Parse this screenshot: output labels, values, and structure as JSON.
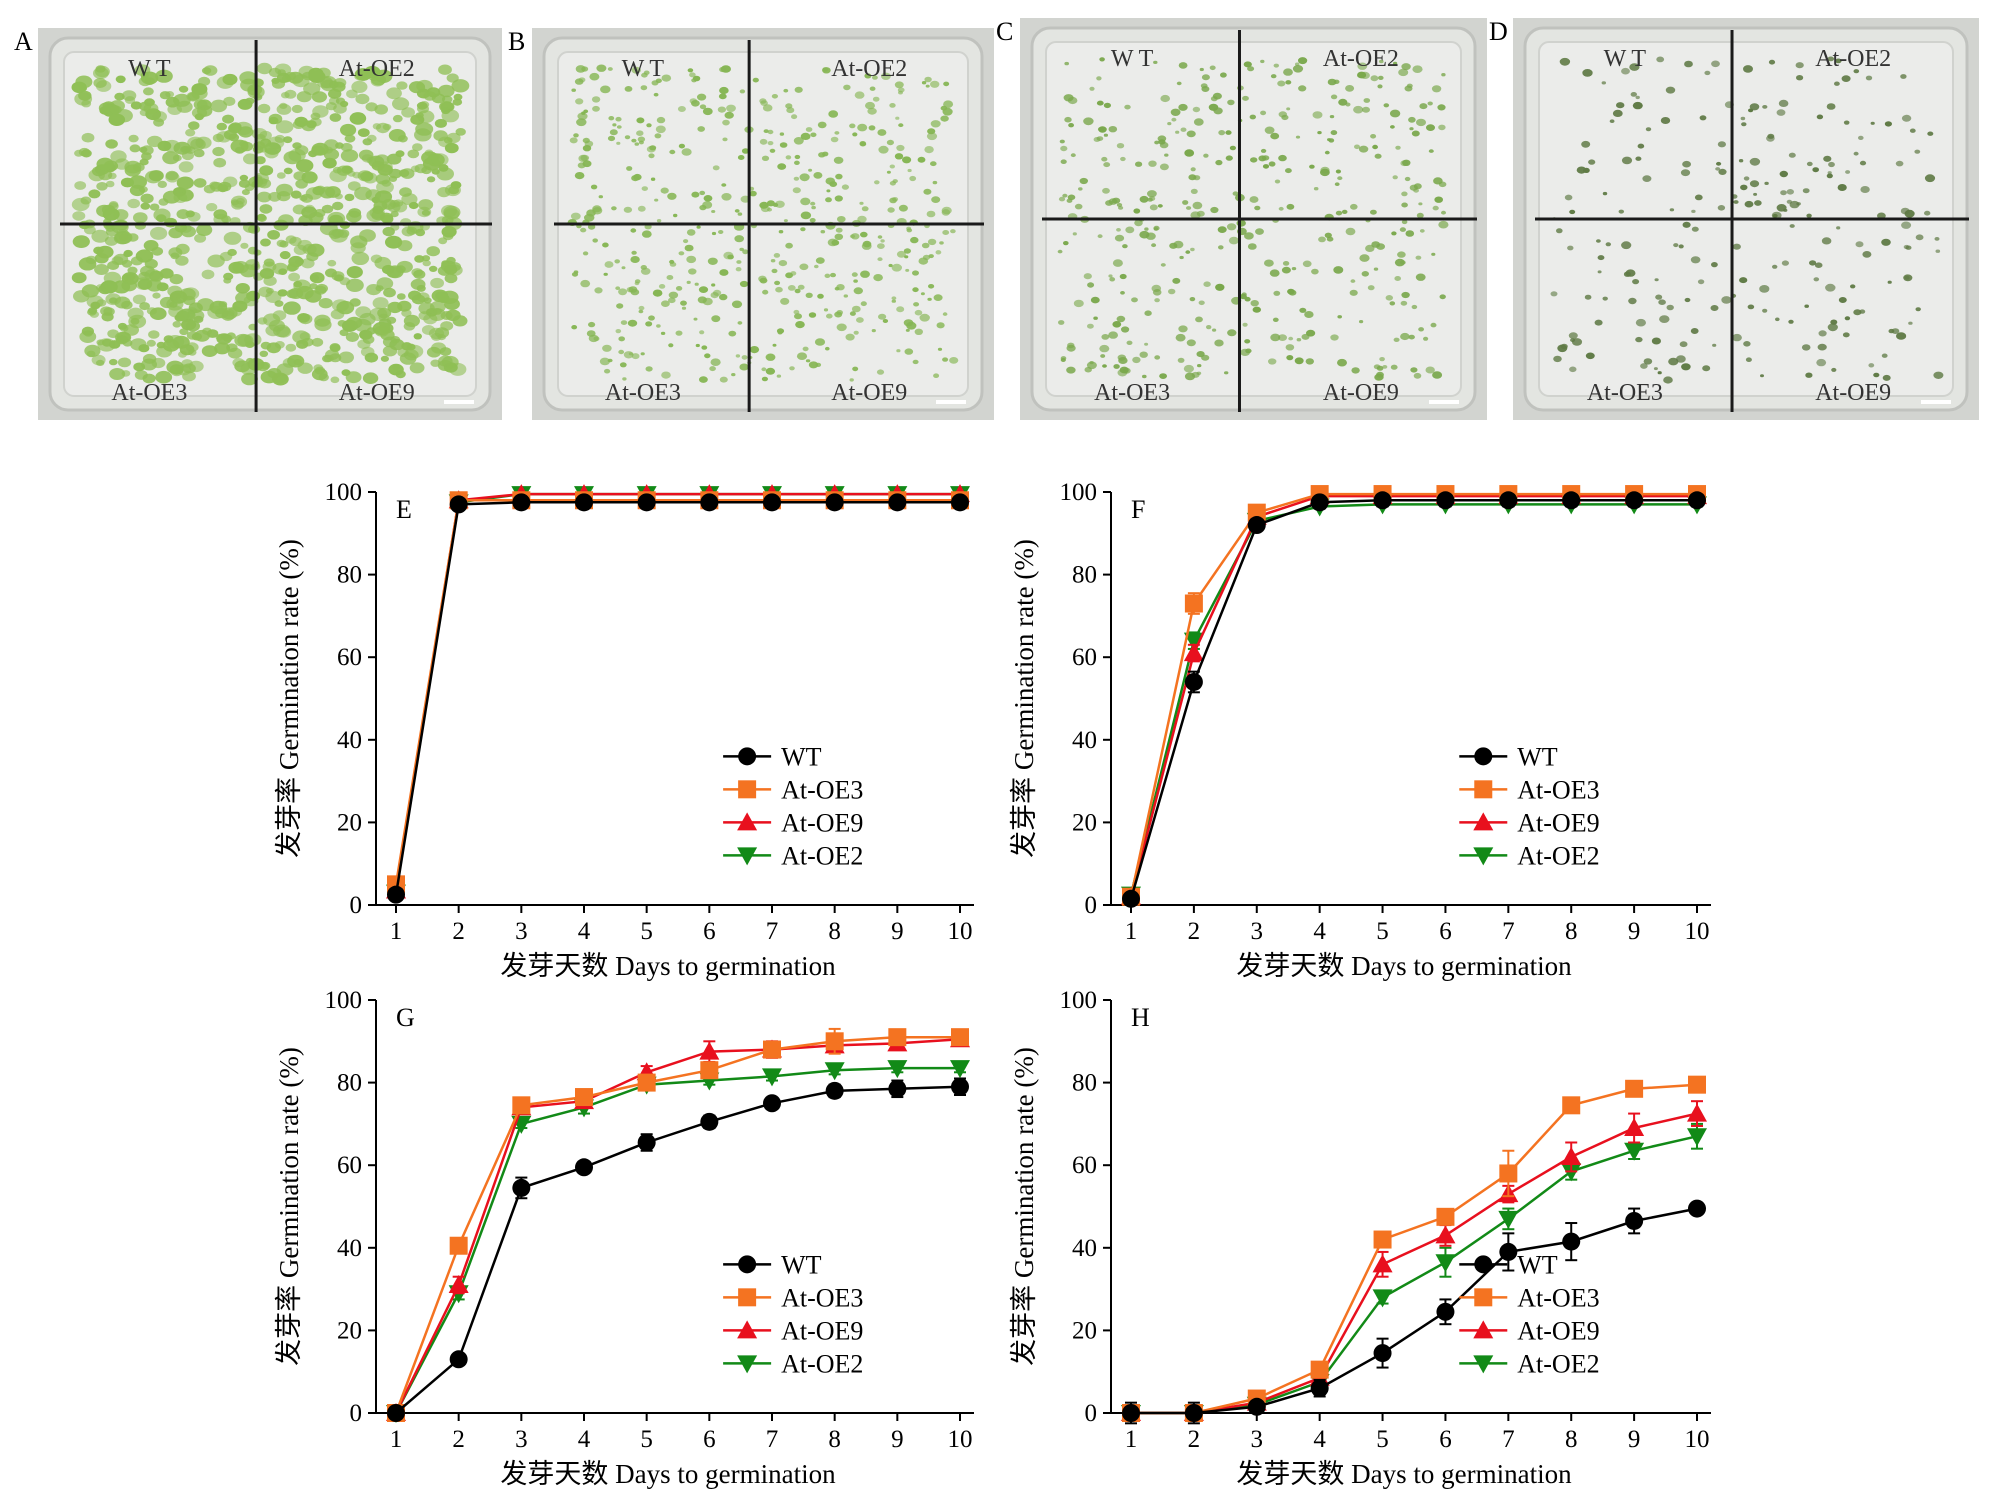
{
  "photos": [
    {
      "panel": "A",
      "quadrants": [
        "W T",
        "At-OE2",
        "At-OE3",
        "At-OE9"
      ],
      "tone": "#8fbf55",
      "density": 1.0
    },
    {
      "panel": "B",
      "quadrants": [
        "W T",
        "At-OE2",
        "At-OE3",
        "At-OE9"
      ],
      "tone": "#86b654",
      "density": 0.55
    },
    {
      "panel": "C",
      "quadrants": [
        "W T",
        "At-OE2",
        "At-OE3",
        "At-OE9"
      ],
      "tone": "#7aa84c",
      "density": 0.45
    },
    {
      "panel": "D",
      "quadrants": [
        "W T",
        "At-OE2",
        "At-OE3",
        "At-OE9"
      ],
      "tone": "#5f7a45",
      "density": 0.25
    }
  ],
  "series_style": [
    {
      "name": "WT",
      "color": "#000000",
      "marker": "circle"
    },
    {
      "name": "At-OE3",
      "color": "#f47321",
      "marker": "square"
    },
    {
      "name": "At-OE9",
      "color": "#e8101e",
      "marker": "triangle-up"
    },
    {
      "name": "At-OE2",
      "color": "#128a17",
      "marker": "triangle-down"
    }
  ],
  "chart_data": [
    {
      "panel": "E",
      "type": "line",
      "xlabel": "发芽天数 Days to germination",
      "ylabel": "发芽率 Germination rate (%)",
      "x": [
        1,
        2,
        3,
        4,
        5,
        6,
        7,
        8,
        9,
        10
      ],
      "xlim": [
        1,
        10
      ],
      "ylim": [
        0,
        100
      ],
      "yticks": [
        0,
        20,
        40,
        60,
        80,
        100
      ],
      "legend_position": "lower-right",
      "series": [
        {
          "name": "WT",
          "values": [
            2.5,
            97,
            97.5,
            97.5,
            97.5,
            97.5,
            97.5,
            97.5,
            97.5,
            97.5
          ],
          "err": [
            0.5,
            0.5,
            0.5,
            0.5,
            0.5,
            0.5,
            0.5,
            0.5,
            0.5,
            0.5
          ]
        },
        {
          "name": "At-OE3",
          "values": [
            5,
            98,
            98,
            98,
            98,
            98,
            98,
            98,
            98,
            98
          ],
          "err": [
            1,
            0.5,
            0.5,
            0.5,
            0.5,
            0.5,
            0.5,
            0.5,
            0.5,
            0.5
          ]
        },
        {
          "name": "At-OE9",
          "values": [
            3.5,
            98,
            99.5,
            99.5,
            99.5,
            99.5,
            99.5,
            99.5,
            99.5,
            99.5
          ],
          "err": [
            0.5,
            0.5,
            0.3,
            0.3,
            0.3,
            0.3,
            0.3,
            0.3,
            0.3,
            0.3
          ]
        },
        {
          "name": "At-OE2",
          "values": [
            3,
            97.5,
            99.5,
            99.5,
            99.5,
            99.5,
            99.5,
            99.5,
            99.5,
            99.5
          ],
          "err": [
            0.5,
            0.5,
            0.3,
            0.3,
            0.3,
            0.3,
            0.3,
            0.3,
            0.3,
            0.3
          ]
        }
      ]
    },
    {
      "panel": "F",
      "type": "line",
      "xlabel": "发芽天数 Days to germination",
      "ylabel": "发芽率 Germination rate (%)",
      "x": [
        1,
        2,
        3,
        4,
        5,
        6,
        7,
        8,
        9,
        10
      ],
      "xlim": [
        1,
        10
      ],
      "ylim": [
        0,
        100
      ],
      "yticks": [
        0,
        20,
        40,
        60,
        80,
        100
      ],
      "legend_position": "lower-right",
      "series": [
        {
          "name": "WT",
          "values": [
            1.5,
            54,
            92,
            97.5,
            98,
            98,
            98,
            98,
            98,
            98
          ],
          "err": [
            0.5,
            2.5,
            1,
            0.5,
            0.5,
            0.5,
            0.5,
            0.5,
            0.5,
            0.5
          ]
        },
        {
          "name": "At-OE3",
          "values": [
            2,
            73,
            95,
            99.5,
            99.5,
            99.5,
            99.5,
            99.5,
            99.5,
            99.5
          ],
          "err": [
            0.5,
            2.5,
            1,
            0.3,
            0.3,
            0.3,
            0.3,
            0.3,
            0.3,
            0.3
          ]
        },
        {
          "name": "At-OE9",
          "values": [
            2,
            61,
            94,
            99,
            99,
            99,
            99,
            99,
            99,
            99
          ],
          "err": [
            0.5,
            2,
            1,
            0.5,
            0.5,
            0.5,
            0.5,
            0.5,
            0.5,
            0.5
          ]
        },
        {
          "name": "At-OE2",
          "values": [
            2.5,
            64,
            93,
            96.5,
            97,
            97,
            97,
            97,
            97,
            97
          ],
          "err": [
            0.5,
            2,
            1,
            0.5,
            0.5,
            0.5,
            0.5,
            0.5,
            0.5,
            0.5
          ]
        }
      ]
    },
    {
      "panel": "G",
      "type": "line",
      "xlabel": "发芽天数 Days to germination",
      "ylabel": "发芽率 Germination rate (%)",
      "x": [
        1,
        2,
        3,
        4,
        5,
        6,
        7,
        8,
        9,
        10
      ],
      "xlim": [
        1,
        10
      ],
      "ylim": [
        0,
        100
      ],
      "yticks": [
        0,
        20,
        40,
        60,
        80,
        100
      ],
      "legend_position": "lower-right",
      "series": [
        {
          "name": "WT",
          "values": [
            0,
            13,
            54.5,
            59.5,
            65.5,
            70.5,
            75,
            78,
            78.5,
            79
          ],
          "err": [
            0.5,
            1,
            2.5,
            1,
            2,
            1.5,
            1,
            1.5,
            2,
            2
          ]
        },
        {
          "name": "At-OE3",
          "values": [
            0,
            40.5,
            74.5,
            76.5,
            80,
            83,
            88,
            90,
            91,
            91
          ],
          "err": [
            0.5,
            1.5,
            1.5,
            1.5,
            1.5,
            1.5,
            1.5,
            3,
            1.5,
            1.5
          ]
        },
        {
          "name": "At-OE9",
          "values": [
            0,
            31,
            74,
            75.5,
            82.5,
            87.5,
            88,
            89,
            89.5,
            90.5
          ],
          "err": [
            0.5,
            2,
            1.5,
            1.5,
            1.5,
            2.5,
            2,
            1.5,
            1.5,
            1.5
          ]
        },
        {
          "name": "At-OE2",
          "values": [
            0,
            29,
            70,
            74,
            79.5,
            80.5,
            81.5,
            83,
            83.5,
            83.5
          ],
          "err": [
            0.5,
            1.5,
            1,
            1.5,
            1,
            1,
            1,
            1,
            1,
            1
          ]
        }
      ]
    },
    {
      "panel": "H",
      "type": "line",
      "xlabel": "发芽天数 Days to germination",
      "ylabel": "发芽率 Germination rate (%)",
      "x": [
        1,
        2,
        3,
        4,
        5,
        6,
        7,
        8,
        9,
        10
      ],
      "xlim": [
        1,
        10
      ],
      "ylim": [
        0,
        100
      ],
      "yticks": [
        0,
        20,
        40,
        60,
        80,
        100
      ],
      "legend_position": "lower-right",
      "series": [
        {
          "name": "WT",
          "values": [
            0,
            0,
            1.5,
            6,
            14.5,
            24.5,
            39,
            41.5,
            46.5,
            49.5
          ],
          "err": [
            2.5,
            2.5,
            1,
            2,
            3.5,
            3,
            4.5,
            4.5,
            3,
            1
          ]
        },
        {
          "name": "At-OE3",
          "values": [
            0,
            0,
            3.5,
            10.5,
            42,
            47.5,
            58,
            74.5,
            78.5,
            79.5
          ],
          "err": [
            1,
            1,
            1,
            1.5,
            1.5,
            1.5,
            5.5,
            1.5,
            1,
            1
          ]
        },
        {
          "name": "At-OE9",
          "values": [
            0,
            0,
            2.5,
            8.5,
            36,
            43,
            53,
            62,
            69,
            72.5
          ],
          "err": [
            1,
            1,
            1,
            1.5,
            3,
            2.5,
            2,
            3.5,
            3.5,
            3
          ]
        },
        {
          "name": "At-OE2",
          "values": [
            0,
            0,
            2,
            7.5,
            28,
            36.5,
            47,
            58.5,
            63.5,
            67
          ],
          "err": [
            1,
            1,
            1,
            1.5,
            1.5,
            3.5,
            2.5,
            2,
            2,
            3
          ]
        }
      ]
    }
  ]
}
